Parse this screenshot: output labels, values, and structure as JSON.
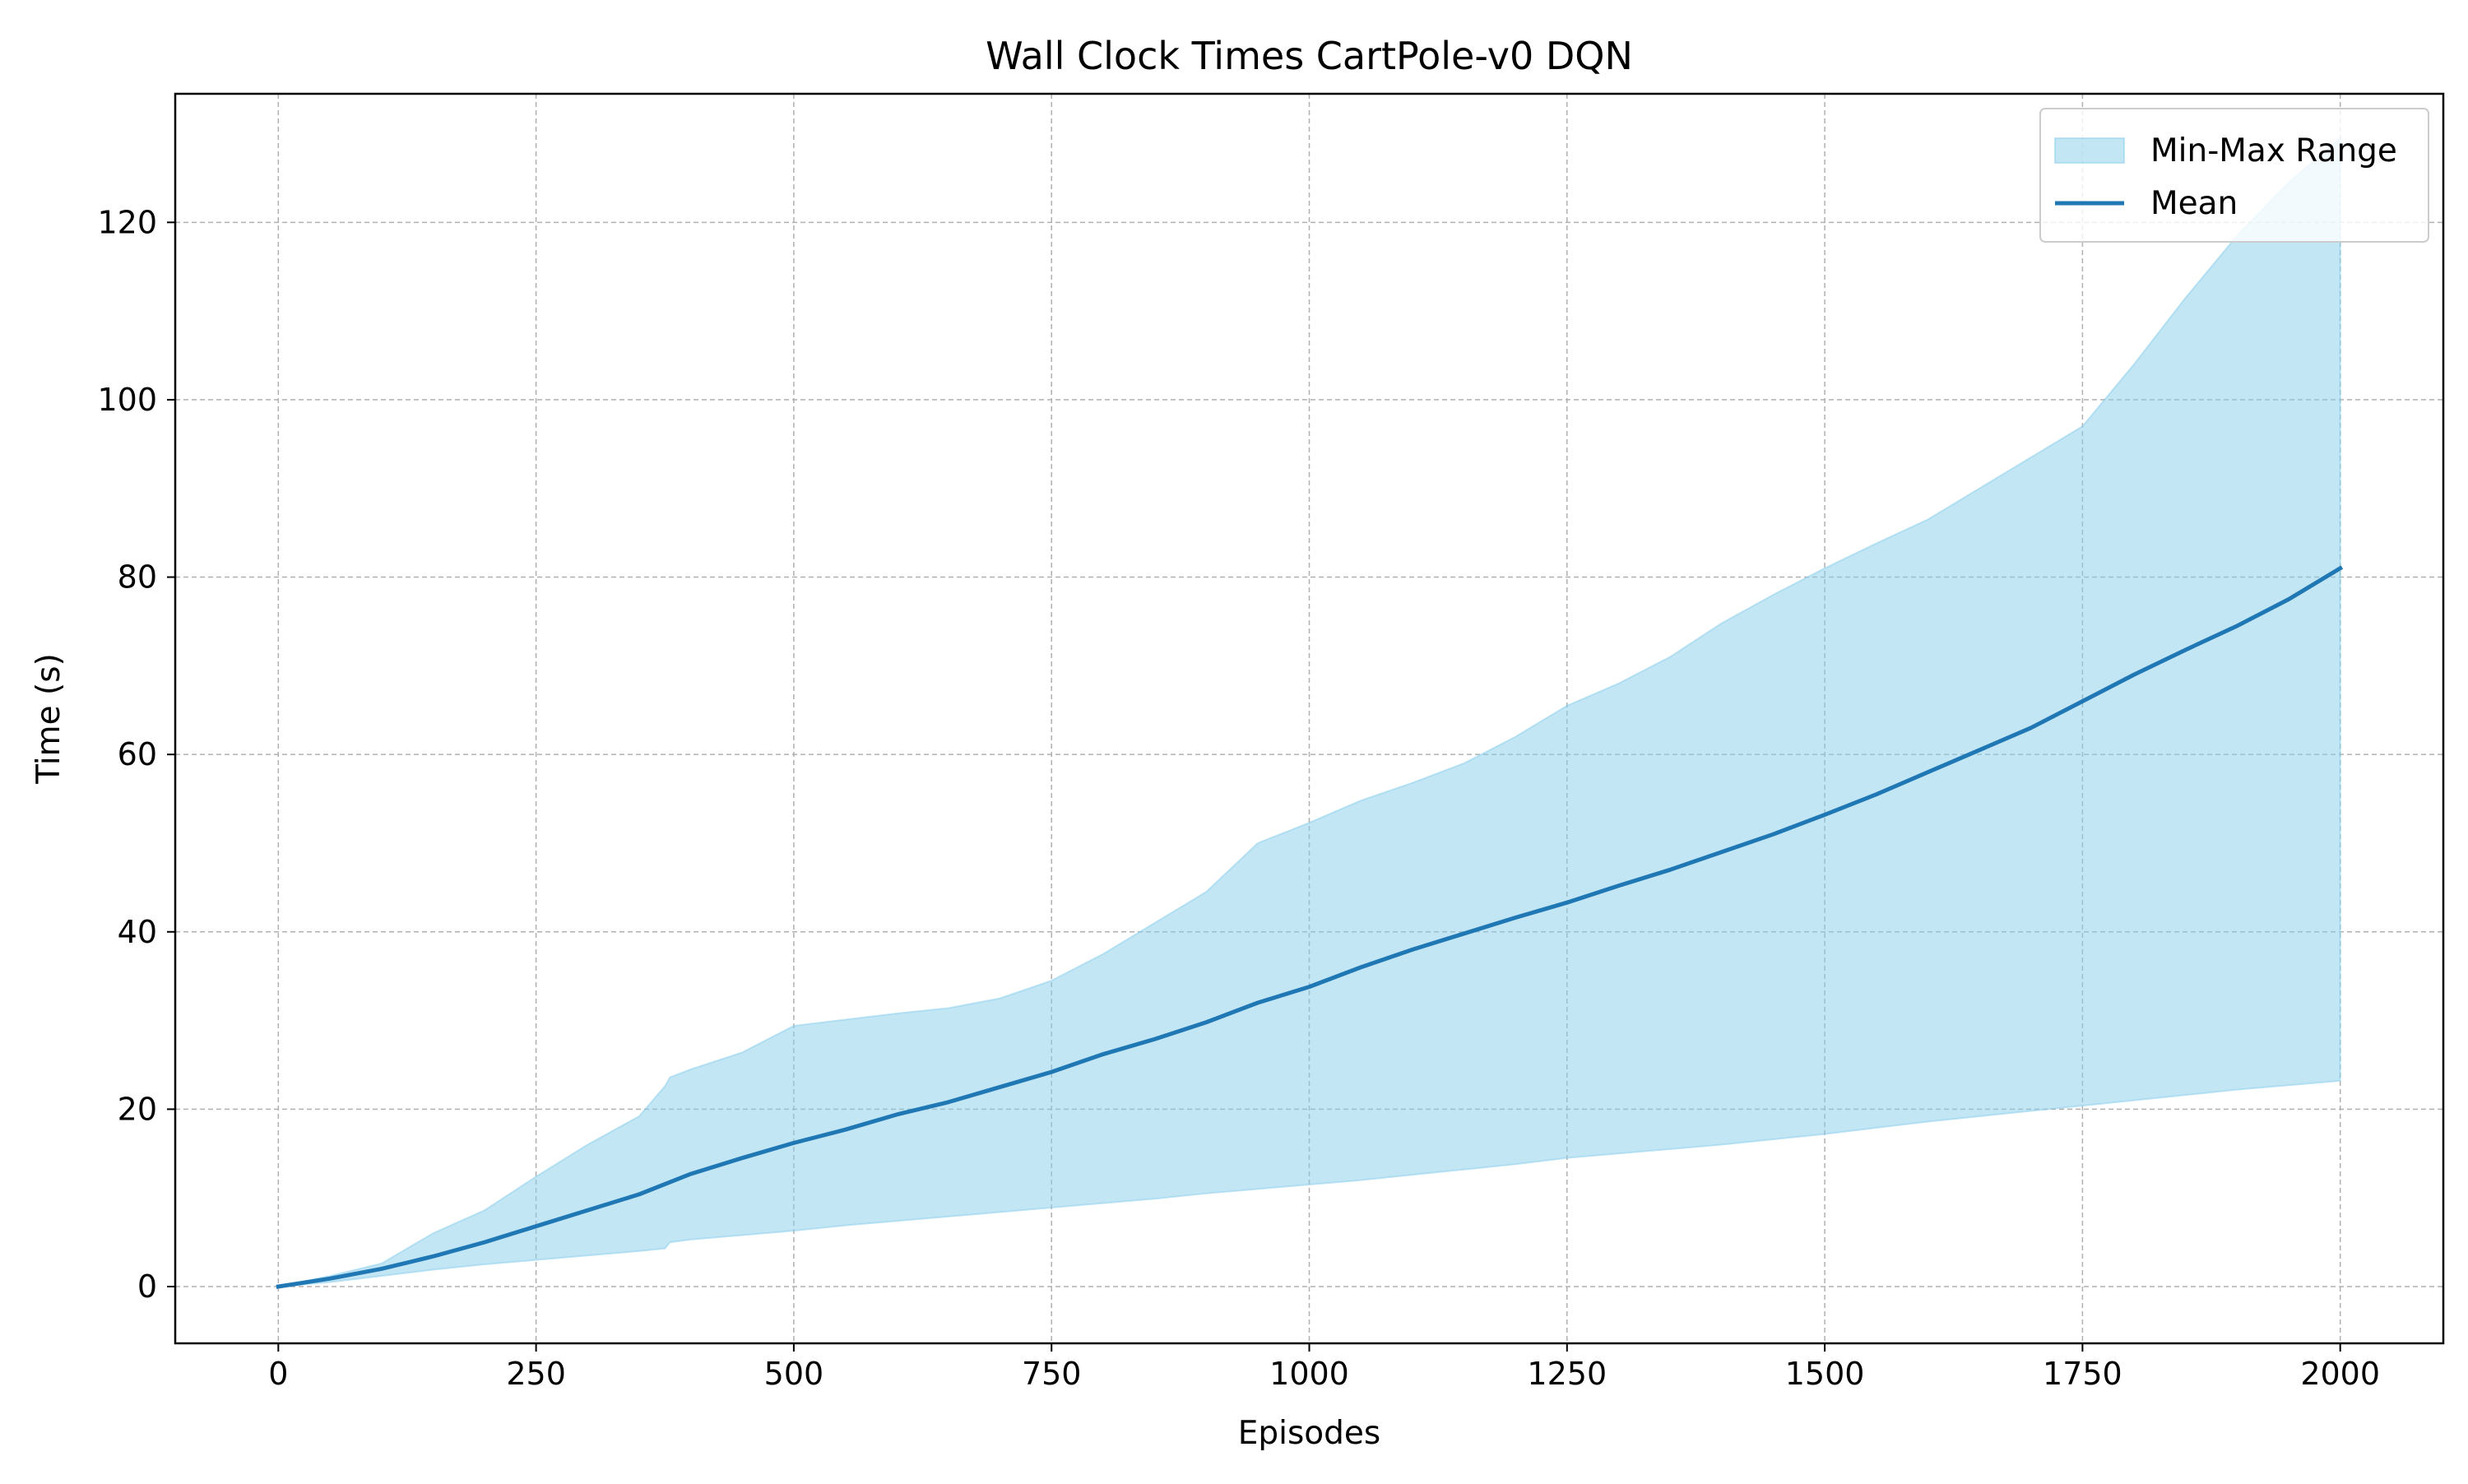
{
  "chart_data": {
    "type": "area",
    "title": "Wall Clock Times CartPole-v0 DQN",
    "xlabel": "Episodes",
    "ylabel": "Time (s)",
    "xlim": [
      -100,
      2100
    ],
    "ylim": [
      -6.4,
      134.5
    ],
    "xticks": [
      0,
      250,
      500,
      750,
      1000,
      1250,
      1500,
      1750,
      2000
    ],
    "yticks": [
      0,
      20,
      40,
      60,
      80,
      100,
      120
    ],
    "grid": true,
    "legend_position": "top-right",
    "colors": {
      "band_fill": "#87ceeb",
      "band_edge": "#87ceeb",
      "mean_line": "#1f77b4",
      "grid": "#b0b0b0"
    },
    "series": [
      {
        "name": "Min-Max Range",
        "kind": "band",
        "x": [
          0,
          50,
          100,
          150,
          200,
          250,
          300,
          350,
          375,
          380,
          400,
          450,
          500,
          550,
          600,
          650,
          700,
          750,
          800,
          850,
          900,
          950,
          1000,
          1050,
          1100,
          1150,
          1200,
          1250,
          1300,
          1350,
          1400,
          1450,
          1500,
          1550,
          1600,
          1650,
          1700,
          1750,
          1800,
          1850,
          1900,
          1950,
          2000
        ],
        "lower": [
          0.0,
          0.5,
          1.2,
          1.9,
          2.5,
          3.0,
          3.5,
          4.0,
          4.3,
          5.0,
          5.3,
          5.8,
          6.3,
          6.9,
          7.4,
          7.9,
          8.4,
          8.9,
          9.4,
          9.9,
          10.5,
          11.0,
          11.5,
          12.0,
          12.6,
          13.2,
          13.8,
          14.5,
          15.0,
          15.5,
          16.0,
          16.6,
          17.2,
          17.9,
          18.6,
          19.2,
          19.8,
          20.4,
          21.0,
          21.6,
          22.2,
          22.7,
          23.2
        ],
        "upper": [
          0.0,
          1.2,
          2.6,
          6.0,
          8.6,
          12.4,
          16.0,
          19.2,
          22.6,
          23.6,
          24.5,
          26.4,
          29.4,
          30.1,
          30.8,
          31.4,
          32.5,
          34.5,
          37.5,
          41.0,
          44.5,
          50.0,
          52.3,
          54.8,
          56.8,
          59.0,
          62.0,
          65.5,
          68.0,
          71.0,
          74.8,
          78.0,
          81.0,
          83.8,
          86.5,
          90.0,
          93.5,
          97.0,
          104.0,
          111.5,
          118.5,
          124.5,
          129.5
        ]
      },
      {
        "name": "Mean",
        "kind": "line",
        "x": [
          0,
          50,
          100,
          150,
          200,
          250,
          300,
          350,
          400,
          450,
          500,
          550,
          600,
          650,
          700,
          750,
          800,
          850,
          900,
          950,
          1000,
          1050,
          1100,
          1150,
          1200,
          1250,
          1300,
          1350,
          1400,
          1450,
          1500,
          1550,
          1600,
          1650,
          1700,
          1750,
          1800,
          1850,
          1900,
          1950,
          2000
        ],
        "values": [
          0.0,
          0.9,
          2.0,
          3.4,
          5.0,
          6.8,
          8.6,
          10.4,
          12.7,
          14.5,
          16.2,
          17.7,
          19.4,
          20.8,
          22.5,
          24.2,
          26.2,
          27.9,
          29.8,
          32.0,
          33.8,
          36.0,
          38.0,
          39.8,
          41.6,
          43.3,
          45.2,
          47.0,
          49.0,
          51.0,
          53.2,
          55.5,
          58.0,
          60.5,
          63.0,
          66.0,
          69.0,
          71.8,
          74.5,
          77.5,
          81.0
        ]
      }
    ]
  }
}
